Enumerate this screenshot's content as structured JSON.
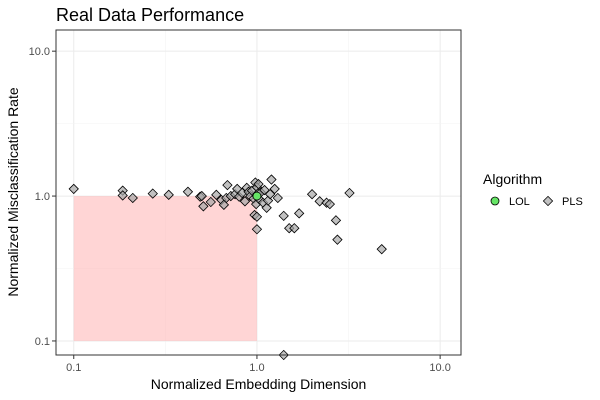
{
  "chart_data": {
    "type": "scatter",
    "title": "Real Data Performance",
    "xlabel": "Normalized Embedding Dimension",
    "ylabel": "Normalized Misclassification Rate",
    "x_scale": "log10",
    "y_scale": "log10",
    "xlim": [
      0.08,
      13
    ],
    "ylim": [
      0.08,
      14
    ],
    "x_ticks": [
      0.1,
      1.0,
      10.0
    ],
    "x_tick_labels": [
      "0.1",
      "1.0",
      "10.0"
    ],
    "y_ticks": [
      0.1,
      1.0,
      10.0
    ],
    "y_tick_labels": [
      "0.1",
      "1.0",
      "10.0"
    ],
    "grid": true,
    "shaded_region": {
      "x": [
        0.1,
        1.0
      ],
      "y": [
        0.1,
        1.0
      ],
      "color": "#ffb3b3"
    },
    "legend": {
      "title": "Algorithm",
      "placement": "right",
      "entries": [
        {
          "label": "LOL",
          "shape": "circle",
          "color": "#66e566"
        },
        {
          "label": "PLS",
          "shape": "diamond",
          "color": "#a6a6a6"
        }
      ]
    },
    "series": [
      {
        "name": "LOL",
        "shape": "circle",
        "color": "#66e566",
        "points": [
          [
            1.0,
            1.0
          ]
        ]
      },
      {
        "name": "PLS",
        "shape": "diamond",
        "color": "#a6a6a6",
        "points": [
          [
            0.1,
            1.12
          ],
          [
            0.185,
            1.09
          ],
          [
            0.185,
            1.01
          ],
          [
            0.21,
            0.97
          ],
          [
            0.27,
            1.04
          ],
          [
            0.33,
            1.02
          ],
          [
            0.42,
            1.07
          ],
          [
            0.49,
            0.99
          ],
          [
            0.5,
            1.0
          ],
          [
            0.51,
            0.85
          ],
          [
            0.56,
            0.91
          ],
          [
            0.6,
            1.02
          ],
          [
            0.64,
            0.94
          ],
          [
            0.66,
            0.87
          ],
          [
            0.68,
            0.97
          ],
          [
            0.69,
            1.19
          ],
          [
            0.72,
            1.0
          ],
          [
            0.76,
            1.03
          ],
          [
            0.78,
            1.12
          ],
          [
            0.8,
            0.99
          ],
          [
            0.83,
            1.05
          ],
          [
            0.86,
            0.92
          ],
          [
            0.88,
            1.14
          ],
          [
            0.9,
            1.07
          ],
          [
            0.92,
            1.0
          ],
          [
            0.94,
            1.09
          ],
          [
            0.96,
            0.96
          ],
          [
            0.97,
            0.74
          ],
          [
            0.98,
            1.24
          ],
          [
            0.99,
            0.88
          ],
          [
            1.0,
            1.0
          ],
          [
            1.0,
            1.15
          ],
          [
            1.0,
            0.59
          ],
          [
            1.0,
            0.72
          ],
          [
            1.01,
            1.04
          ],
          [
            1.02,
            1.21
          ],
          [
            1.03,
            0.95
          ],
          [
            1.05,
            1.06
          ],
          [
            1.08,
            0.9
          ],
          [
            1.1,
            1.1
          ],
          [
            1.13,
            0.83
          ],
          [
            1.15,
            0.93
          ],
          [
            1.18,
            1.03
          ],
          [
            1.2,
            1.3
          ],
          [
            1.25,
            1.12
          ],
          [
            1.3,
            0.97
          ],
          [
            1.4,
            0.73
          ],
          [
            1.5,
            0.6
          ],
          [
            1.6,
            0.6
          ],
          [
            1.7,
            0.76
          ],
          [
            2.0,
            1.03
          ],
          [
            2.2,
            0.92
          ],
          [
            2.4,
            0.9
          ],
          [
            2.5,
            0.88
          ],
          [
            2.7,
            0.68
          ],
          [
            2.75,
            0.5
          ],
          [
            3.2,
            1.05
          ],
          [
            4.8,
            0.43
          ],
          [
            1.4,
            0.08
          ]
        ]
      }
    ]
  }
}
